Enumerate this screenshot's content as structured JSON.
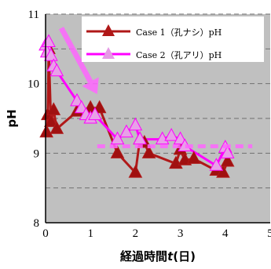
{
  "chart_data": {
    "type": "line",
    "title": "",
    "xlabel": "経過時間",
    "xlabel_var": "t",
    "xlabel_unit": "(日)",
    "ylabel": "pH",
    "xlim": [
      0,
      5
    ],
    "ylim": [
      8,
      11
    ],
    "x_ticks": [
      "0",
      "1",
      "2",
      "3",
      "4",
      "5"
    ],
    "y_ticks": [
      "8",
      "9",
      "10",
      "11"
    ],
    "grid": "horizontal dashed",
    "legend_position": "top-right",
    "background": "#c0c0c0",
    "series": [
      {
        "name": "Case 1（孔ナシ）pH",
        "color": "#b01818",
        "marker": "triangle",
        "points": [
          [
            0.02,
            9.3
          ],
          [
            0.05,
            9.55
          ],
          [
            0.07,
            10.5
          ],
          [
            0.12,
            9.45
          ],
          [
            0.18,
            9.62
          ],
          [
            0.25,
            9.35
          ],
          [
            0.7,
            9.6
          ],
          [
            1.0,
            9.65
          ],
          [
            1.2,
            9.65
          ],
          [
            1.6,
            9.0
          ],
          [
            2.0,
            8.72
          ],
          [
            2.1,
            9.2
          ],
          [
            2.2,
            9.15
          ],
          [
            2.3,
            9.0
          ],
          [
            2.9,
            8.85
          ],
          [
            3.0,
            9.05
          ],
          [
            3.1,
            8.9
          ],
          [
            3.3,
            8.92
          ],
          [
            3.8,
            8.75
          ],
          [
            3.95,
            8.72
          ],
          [
            4.05,
            8.88
          ]
        ]
      },
      {
        "name": "Case 2（孔アリ）pH",
        "color": "#ff00ff",
        "marker": "triangle",
        "points": [
          [
            0.0,
            10.55
          ],
          [
            0.03,
            10.45
          ],
          [
            0.07,
            10.6
          ],
          [
            0.12,
            10.4
          ],
          [
            0.18,
            10.25
          ],
          [
            0.25,
            10.18
          ],
          [
            0.7,
            9.75
          ],
          [
            0.8,
            9.65
          ],
          [
            0.9,
            9.55
          ],
          [
            1.0,
            9.5
          ],
          [
            1.1,
            9.55
          ],
          [
            1.6,
            9.2
          ],
          [
            1.8,
            9.3
          ],
          [
            2.0,
            9.4
          ],
          [
            2.1,
            9.2
          ],
          [
            2.6,
            9.2
          ],
          [
            2.8,
            9.25
          ],
          [
            3.0,
            9.2
          ],
          [
            3.1,
            9.1
          ],
          [
            3.8,
            8.82
          ],
          [
            4.0,
            9.08
          ],
          [
            4.05,
            9.0
          ]
        ]
      }
    ],
    "annotations": [
      {
        "type": "arrow",
        "color": "#ff66ff",
        "from": [
          0.35,
          10.8
        ],
        "to": [
          1.15,
          9.85
        ]
      },
      {
        "type": "dashed_line",
        "color": "#ff66ff",
        "from": [
          1.15,
          9.1
        ],
        "to": [
          4.6,
          9.1
        ]
      }
    ]
  }
}
